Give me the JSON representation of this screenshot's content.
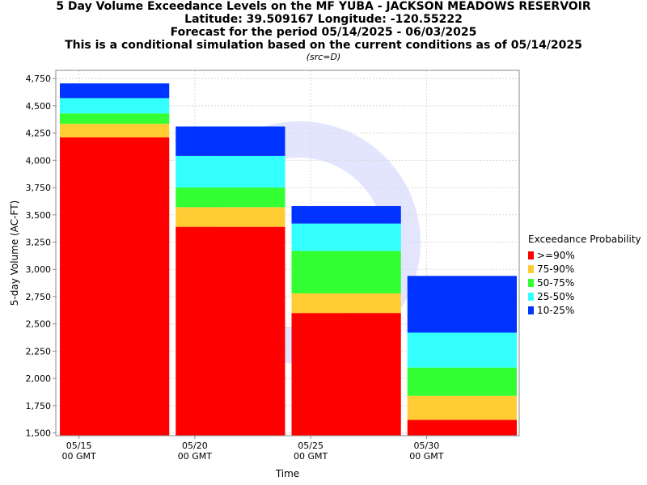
{
  "titles": {
    "line1": "5 Day Volume Exceedance Levels on the MF YUBA - JACKSON MEADOWS RESERVOIR",
    "line2": "Latitude: 39.509167 Longitude: -120.55222",
    "line3": "Forecast for the period 05/14/2025 - 06/03/2025",
    "line4": "This is a conditional simulation based on the current conditions as of 05/14/2025",
    "src": "(src=D)"
  },
  "chart_data": {
    "type": "bar",
    "stacked": true,
    "title": "5 Day Volume Exceedance Levels on the MF YUBA - JACKSON MEADOWS RESERVOIR",
    "xlabel": "Time",
    "ylabel": "5-day Volume (AC-FT)",
    "ylim": [
      1475,
      4825
    ],
    "y_ticks": [
      "1,500",
      "1,750",
      "2,000",
      "2,250",
      "2,500",
      "2,750",
      "3,000",
      "3,250",
      "3,500",
      "3,750",
      "4,000",
      "4,250",
      "4,500",
      "4,750"
    ],
    "y_tick_values": [
      1500,
      1750,
      2000,
      2250,
      2500,
      2750,
      3000,
      3250,
      3500,
      3750,
      4000,
      4250,
      4500,
      4750
    ],
    "x_ticks": [
      {
        "date": "05/15",
        "time": "00 GMT"
      },
      {
        "date": "05/20",
        "time": "00 GMT"
      },
      {
        "date": "05/25",
        "time": "00 GMT"
      },
      {
        "date": "05/30",
        "time": "00 GMT"
      }
    ],
    "x_range": [
      "05/14",
      "06/03"
    ],
    "grid": true,
    "legend_position": "right",
    "legend_title": "Exceedance Probability",
    "series": [
      {
        "name": ">=90%",
        "color": "#ff0000"
      },
      {
        "name": "75-90%",
        "color": "#ffcc33"
      },
      {
        "name": "50-75%",
        "color": "#33ff33"
      },
      {
        "name": "25-50%",
        "color": "#33ffff"
      },
      {
        "name": "10-25%",
        "color": "#0033ff"
      }
    ],
    "bars": [
      {
        "start": "05/14",
        "end": "05/19",
        "levels": [
          4210,
          4335,
          4430,
          4570,
          4705
        ]
      },
      {
        "start": "05/19",
        "end": "05/24",
        "levels": [
          3390,
          3570,
          3750,
          4040,
          4310
        ]
      },
      {
        "start": "05/24",
        "end": "05/29",
        "levels": [
          2600,
          2780,
          3170,
          3420,
          3580
        ]
      },
      {
        "start": "05/29",
        "end": "06/03",
        "levels": [
          1620,
          1840,
          2100,
          2420,
          2940
        ]
      }
    ]
  }
}
